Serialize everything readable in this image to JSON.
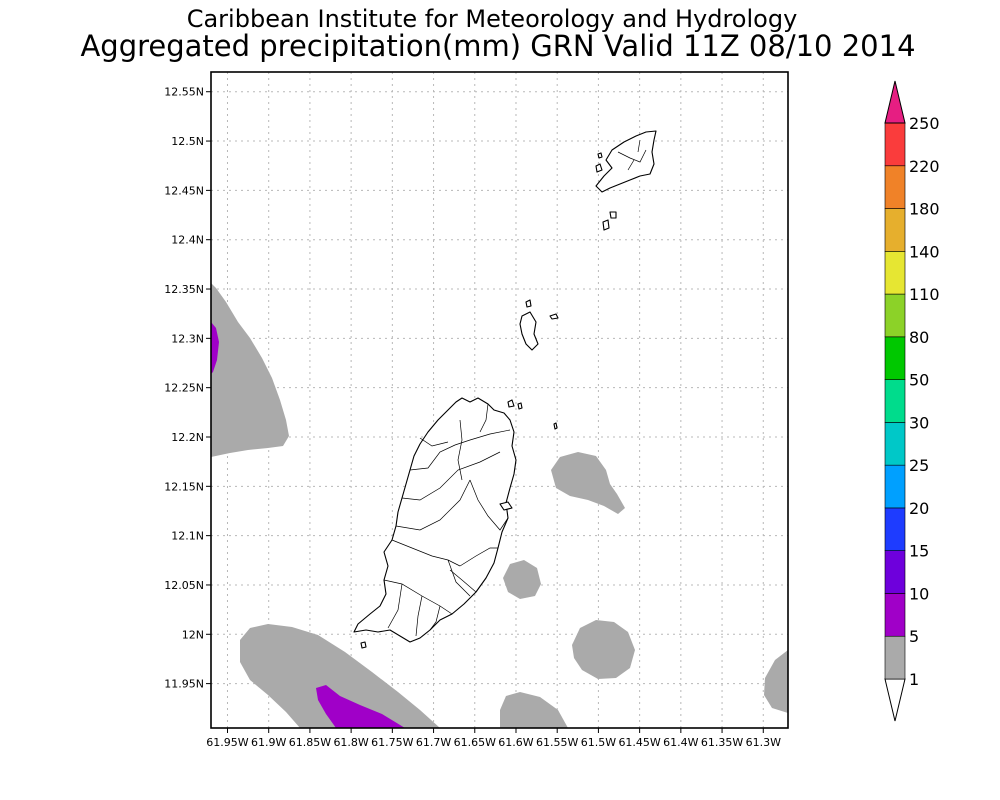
{
  "header": {
    "line1": "Caribbean Institute for Meteorology and Hydrology",
    "line2": "Aggregated precipitation(mm) GRN Valid 11Z 08/10 2014"
  },
  "map": {
    "lon_range": [
      -61.97,
      -61.27
    ],
    "lat_range": [
      11.905,
      12.57
    ],
    "lat_ticks": [
      {
        "v": 12.55,
        "label": "12.55N"
      },
      {
        "v": 12.5,
        "label": "12.5N"
      },
      {
        "v": 12.45,
        "label": "12.45N"
      },
      {
        "v": 12.4,
        "label": "12.4N"
      },
      {
        "v": 12.35,
        "label": "12.35N"
      },
      {
        "v": 12.3,
        "label": "12.3N"
      },
      {
        "v": 12.25,
        "label": "12.25N"
      },
      {
        "v": 12.2,
        "label": "12.2N"
      },
      {
        "v": 12.15,
        "label": "12.15N"
      },
      {
        "v": 12.1,
        "label": "12.1N"
      },
      {
        "v": 12.05,
        "label": "12.05N"
      },
      {
        "v": 12.0,
        "label": "12N"
      },
      {
        "v": 11.95,
        "label": "11.95N"
      }
    ],
    "lon_ticks": [
      {
        "v": -61.95,
        "label": "61.95W"
      },
      {
        "v": -61.9,
        "label": "61.9W"
      },
      {
        "v": -61.85,
        "label": "61.85W"
      },
      {
        "v": -61.8,
        "label": "61.8W"
      },
      {
        "v": -61.75,
        "label": "61.75W"
      },
      {
        "v": -61.7,
        "label": "61.7W"
      },
      {
        "v": -61.65,
        "label": "61.65W"
      },
      {
        "v": -61.6,
        "label": "61.6W"
      },
      {
        "v": -61.55,
        "label": "61.55W"
      },
      {
        "v": -61.5,
        "label": "61.5W"
      },
      {
        "v": -61.45,
        "label": "61.45W"
      },
      {
        "v": -61.4,
        "label": "61.4W"
      },
      {
        "v": -61.35,
        "label": "61.35W"
      },
      {
        "v": -61.3,
        "label": "61.3W"
      }
    ]
  },
  "colorbar": {
    "labels": [
      "1",
      "5",
      "10",
      "15",
      "20",
      "25",
      "30",
      "50",
      "80",
      "110",
      "140",
      "180",
      "220",
      "250"
    ],
    "colors": [
      "#aaaaaa",
      "#a000c8",
      "#6e00dc",
      "#1e3cff",
      "#00a0ff",
      "#00c8c8",
      "#00dc8c",
      "#00c800",
      "#8cd228",
      "#e6e632",
      "#e6af2d",
      "#f08228",
      "#fa3c3c",
      "#e61e82"
    ]
  }
}
